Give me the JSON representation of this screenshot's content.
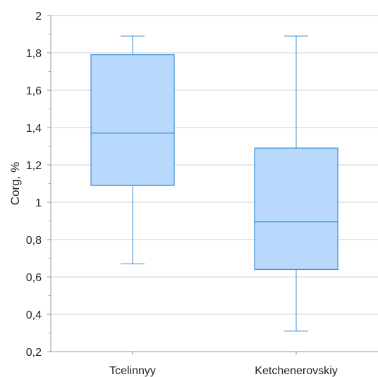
{
  "chart_data": {
    "type": "box",
    "ylabel": "Corg, %",
    "ylim": [
      0.2,
      2.0
    ],
    "yticks": [
      0.2,
      0.4,
      0.6,
      0.8,
      1.0,
      1.2,
      1.4,
      1.6,
      1.8,
      2.0
    ],
    "ytick_labels": [
      "0,2",
      "0,4",
      "0,6",
      "0,8",
      "1",
      "1,2",
      "1,4",
      "1,6",
      "1,8",
      "2"
    ],
    "grid": true,
    "categories": [
      "Tcelinnyy",
      "Ketchenerovskiy"
    ],
    "boxes": [
      {
        "min": 0.67,
        "q1": 1.09,
        "median": 1.37,
        "q3": 1.79,
        "max": 1.89
      },
      {
        "min": 0.31,
        "q1": 0.64,
        "median": 0.895,
        "q3": 1.29,
        "max": 1.89
      }
    ],
    "colors": {
      "fill": "#b8d9fb",
      "stroke": "#3a8fd9",
      "grid": "#cfcfcf",
      "axis": "#999999"
    }
  }
}
